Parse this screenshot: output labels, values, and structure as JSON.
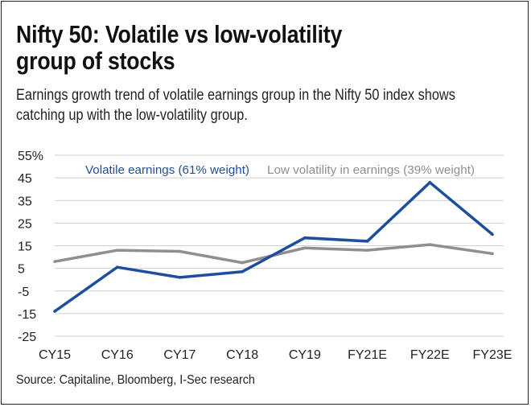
{
  "header": {
    "title_line1": "Nifty 50: Volatile vs low-volatility",
    "title_line2": "group of stocks",
    "subtitle_line1": "Earnings growth trend of volatile earnings group in the Nifty 50 index shows",
    "subtitle_line2": "catching up with the low-volatility group."
  },
  "footer": {
    "source": "Source: Capitaline, Bloomberg, I-Sec research"
  },
  "chart_data": {
    "type": "line",
    "title": "",
    "xlabel": "",
    "ylabel": "",
    "categories": [
      "CY15",
      "CY16",
      "CY17",
      "CY18",
      "CY19",
      "FY21E",
      "FY22E",
      "FY23E"
    ],
    "y_ticks": [
      "55%",
      "45",
      "35",
      "25",
      "15",
      "5",
      "-5",
      "-15",
      "-25"
    ],
    "ylim": [
      -25,
      55
    ],
    "grid": "horizontal",
    "legend": "top, inline",
    "series": [
      {
        "name": "Volatile earnings (61% weight)",
        "color": "#1f4e9e",
        "values": [
          -14,
          5.5,
          1,
          3.5,
          18.5,
          17,
          43,
          20
        ]
      },
      {
        "name": "Low volatility in earnings (39% weight)",
        "color": "#8f8f8f",
        "values": [
          8,
          13,
          12.5,
          7.5,
          14,
          13,
          15.5,
          11.5
        ]
      }
    ]
  }
}
